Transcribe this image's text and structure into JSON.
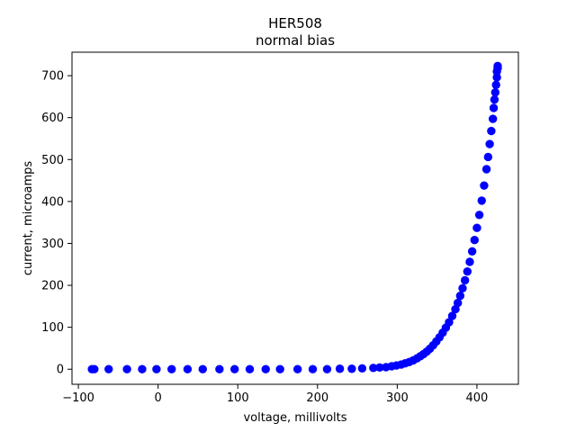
{
  "chart_data": {
    "type": "scatter",
    "title": "HER508",
    "subtitle": "normal bias",
    "xlabel": "voltage, millivolts",
    "ylabel": "current, microamps",
    "xlim": [
      -108,
      452
    ],
    "ylim": [
      -36,
      756
    ],
    "xticks": [
      -100,
      0,
      100,
      200,
      300,
      400
    ],
    "yticks": [
      0,
      100,
      200,
      300,
      400,
      500,
      600,
      700
    ],
    "xtick_labels": [
      "−100",
      "0",
      "100",
      "200",
      "300",
      "400"
    ],
    "ytick_labels": [
      "0",
      "100",
      "200",
      "300",
      "400",
      "500",
      "600",
      "700"
    ],
    "grid": false,
    "marker_color": "#0000ff",
    "series": [
      {
        "x": [
          -83,
          -80,
          -62,
          -39,
          -20,
          -2,
          17,
          37,
          56,
          77,
          96,
          115,
          135,
          153,
          175,
          194,
          212,
          228,
          243,
          256,
          270,
          278,
          286,
          293,
          299,
          305,
          310,
          315,
          320,
          325,
          329,
          333,
          337,
          341,
          345,
          349,
          353,
          357,
          361,
          365,
          369,
          373,
          376,
          379,
          382,
          385,
          388,
          391,
          394,
          397,
          400,
          403,
          406,
          409,
          412,
          414,
          416,
          418,
          420,
          421,
          422,
          423,
          424,
          425,
          425,
          426,
          426
        ],
        "y": [
          0,
          0,
          0,
          0,
          0,
          0,
          0,
          0,
          0,
          0,
          0,
          0,
          0,
          0,
          0,
          0,
          0,
          1,
          1,
          2,
          3,
          4,
          5,
          7,
          9,
          11,
          14,
          17,
          21,
          26,
          31,
          36,
          42,
          49,
          57,
          66,
          76,
          87,
          99,
          112,
          127,
          143,
          158,
          175,
          193,
          212,
          233,
          256,
          281,
          308,
          337,
          368,
          402,
          438,
          477,
          506,
          537,
          568,
          597,
          623,
          643,
          660,
          678,
          696,
          710,
          718,
          723
        ]
      }
    ]
  }
}
